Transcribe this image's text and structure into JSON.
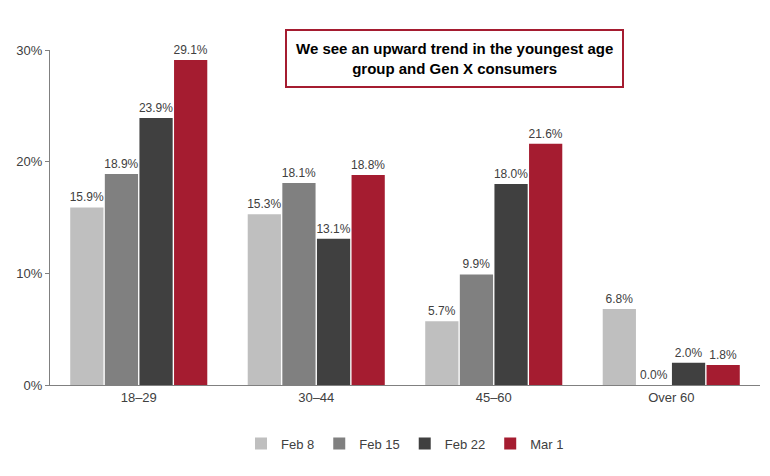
{
  "chart_data": {
    "type": "bar",
    "annotation": [
      "We see an upward trend in the youngest age",
      "group and Gen X consumers"
    ],
    "categories": [
      "18–29",
      "30–44",
      "45–60",
      "Over 60"
    ],
    "series": [
      {
        "name": "Feb 8",
        "color": "#bfbfbf",
        "values": [
          15.9,
          15.3,
          5.7,
          6.8
        ],
        "value_labels": [
          "15.9%",
          "15.3%",
          "5.7%",
          "6.8%"
        ]
      },
      {
        "name": "Feb 15",
        "color": "#808080",
        "values": [
          18.9,
          18.1,
          9.9,
          0.0
        ],
        "value_labels": [
          "18.9%",
          "18.1%",
          "9.9%",
          "0.0%"
        ]
      },
      {
        "name": "Feb 22",
        "color": "#404040",
        "values": [
          23.9,
          13.1,
          18.0,
          2.0
        ],
        "value_labels": [
          "23.9%",
          "13.1%",
          "18.0%",
          "2.0%"
        ]
      },
      {
        "name": "Mar 1",
        "color": "#a51c30",
        "values": [
          29.1,
          18.8,
          21.6,
          1.8
        ],
        "value_labels": [
          "29.1%",
          "18.8%",
          "21.6%",
          "1.8%"
        ]
      }
    ],
    "ylim": [
      0,
      30
    ],
    "yticks": [
      {
        "value": 0,
        "label": "0%"
      },
      {
        "value": 10,
        "label": "10%"
      },
      {
        "value": 20,
        "label": "20%"
      },
      {
        "value": 30,
        "label": "30%"
      }
    ],
    "grid": false,
    "legend": "bottom",
    "data_labels": true
  }
}
